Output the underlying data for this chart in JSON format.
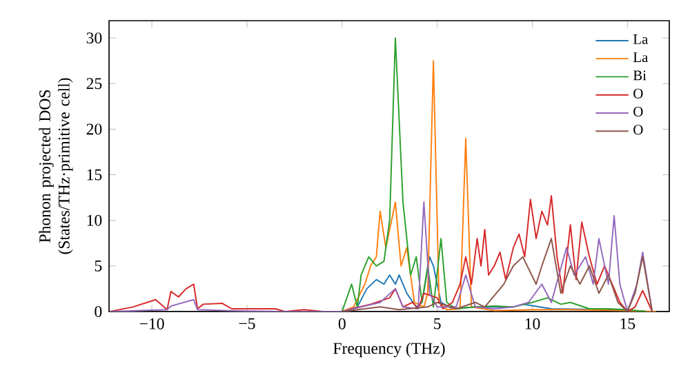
{
  "chart_data": {
    "type": "line",
    "xlabel": "Frequency (THz)",
    "ylabel": "Phonon projected DOS (States/THz·primitive cell)",
    "xlim": [
      -12.25,
      17.2
    ],
    "ylim": [
      0,
      31.9
    ],
    "xticks": [
      {
        "value": -10,
        "label": "−10"
      },
      {
        "value": -5,
        "label": "−5"
      },
      0,
      5,
      10,
      15
    ],
    "yticks": [
      0,
      5,
      10,
      15,
      20,
      25,
      30
    ],
    "legend": "top right",
    "series": [
      {
        "name": "La",
        "color": "#1f77b4",
        "x": [
          0,
          0.8,
          1.3,
          1.8,
          2.2,
          2.5,
          2.8,
          3.0,
          3.4,
          3.9,
          4.2,
          4.6,
          4.8,
          5.2,
          5.8,
          7,
          9,
          9.5,
          11,
          14,
          16
        ],
        "values": [
          0,
          0.5,
          2.5,
          3.5,
          3,
          4,
          3,
          4,
          2,
          0.5,
          1,
          6,
          5,
          1,
          0.3,
          0.5,
          0.5,
          0.8,
          0.3,
          0.2,
          0
        ]
      },
      {
        "name": "La",
        "color": "#ff7f0e",
        "x": [
          0,
          0.6,
          1.2,
          1.5,
          1.8,
          2.0,
          2.3,
          2.8,
          3.1,
          3.4,
          3.8,
          4.3,
          4.5,
          4.8,
          5.1,
          5.5,
          6.2,
          6.5,
          6.8,
          8,
          10,
          12,
          15,
          16.5
        ],
        "values": [
          0,
          0.5,
          3,
          5,
          6,
          11,
          7,
          12,
          5,
          7,
          1,
          0.5,
          2,
          27.5,
          1,
          0.2,
          0.3,
          19,
          0.5,
          0.1,
          0.2,
          0.2,
          0.1,
          0
        ]
      },
      {
        "name": "Bi",
        "color": "#2ca02c",
        "x": [
          0,
          0.5,
          0.8,
          1.0,
          1.4,
          1.8,
          2.2,
          2.5,
          2.8,
          3.2,
          3.6,
          3.9,
          4.2,
          4.5,
          4.8,
          5.2,
          5.5,
          6,
          7,
          8,
          9,
          10,
          10.8,
          11.5,
          12,
          13,
          14,
          15,
          16
        ],
        "values": [
          0,
          3,
          0.5,
          4,
          6,
          5,
          5.5,
          10,
          30,
          12,
          4,
          6,
          1,
          5,
          0.5,
          8,
          1,
          0.3,
          0.5,
          0.6,
          0.5,
          1,
          1.5,
          0.8,
          1,
          0.3,
          0.3,
          0.2,
          0
        ]
      },
      {
        "name": "O",
        "color": "#d62728",
        "x": [
          -12.2,
          -11,
          -9.8,
          -9.2,
          -9.0,
          -8.6,
          -8.2,
          -7.8,
          -7.6,
          -7.3,
          -6.3,
          -5.8,
          -3.5,
          -3,
          -2,
          -1,
          0,
          0.5,
          1.5,
          2.5,
          2.8,
          3.2,
          3.7,
          4.0,
          4.3,
          5,
          5.3,
          5.8,
          6.2,
          6.5,
          6.8,
          7.1,
          7.3,
          7.5,
          7.7,
          8,
          8.3,
          8.6,
          9,
          9.3,
          9.6,
          9.9,
          10.2,
          10.5,
          10.8,
          11,
          11.3,
          11.6,
          12.0,
          12.3,
          12.6,
          13,
          13.4,
          13.8,
          14.2,
          14.6,
          15,
          15.4,
          15.8,
          16.3
        ],
        "values": [
          0,
          0.5,
          1.3,
          0.2,
          2.2,
          1.6,
          2.5,
          3.0,
          0.3,
          0.8,
          0.9,
          0.3,
          0.3,
          0,
          0.2,
          0,
          0,
          0.3,
          0.8,
          1.5,
          2.5,
          0.5,
          1,
          0.3,
          2,
          1.5,
          0.3,
          1,
          3,
          6,
          3,
          8,
          5,
          9,
          4,
          5,
          6.5,
          3.5,
          7,
          8.5,
          6,
          12.3,
          8,
          11,
          9.5,
          12.7,
          6,
          2,
          9.5,
          3.5,
          9.8,
          6,
          3,
          5,
          3,
          1,
          0,
          0.5,
          2.3,
          0
        ]
      },
      {
        "name": "O",
        "color": "#9467bd",
        "x": [
          -12.2,
          -9.2,
          -9.0,
          -7.8,
          -7.6,
          -6,
          -3,
          0,
          1,
          2,
          2.8,
          3.2,
          4.0,
          4.3,
          4.6,
          5,
          6,
          6.5,
          7,
          8,
          9,
          9.8,
          10.5,
          11,
          11.8,
          12.2,
          12.8,
          13.2,
          13.5,
          14,
          14.3,
          14.6,
          15,
          15.5,
          15.8,
          16.3
        ],
        "values": [
          0,
          0.2,
          0.6,
          1.3,
          0.2,
          0.1,
          0,
          0,
          0.5,
          1,
          2.5,
          0.5,
          0.3,
          12,
          2,
          0.5,
          0.5,
          4,
          0.5,
          0.3,
          0.5,
          1,
          3,
          1,
          7,
          4,
          6,
          3,
          8,
          3,
          10.5,
          3,
          0,
          3,
          6.5,
          0
        ]
      },
      {
        "name": "O",
        "color": "#8c564b",
        "x": [
          0,
          2,
          3,
          4.5,
          5,
          6,
          7,
          7.5,
          8.5,
          9,
          9.5,
          10.2,
          10.5,
          11,
          11.5,
          12,
          12.5,
          13,
          13.5,
          14,
          14.5,
          15,
          15.4,
          15.8,
          16.3
        ],
        "values": [
          0,
          0.5,
          0.2,
          0.5,
          1,
          0.3,
          1,
          0.5,
          3,
          5,
          6,
          3,
          5,
          8,
          2,
          5,
          3,
          5,
          2,
          4,
          1,
          0,
          2,
          6,
          0
        ]
      }
    ]
  }
}
